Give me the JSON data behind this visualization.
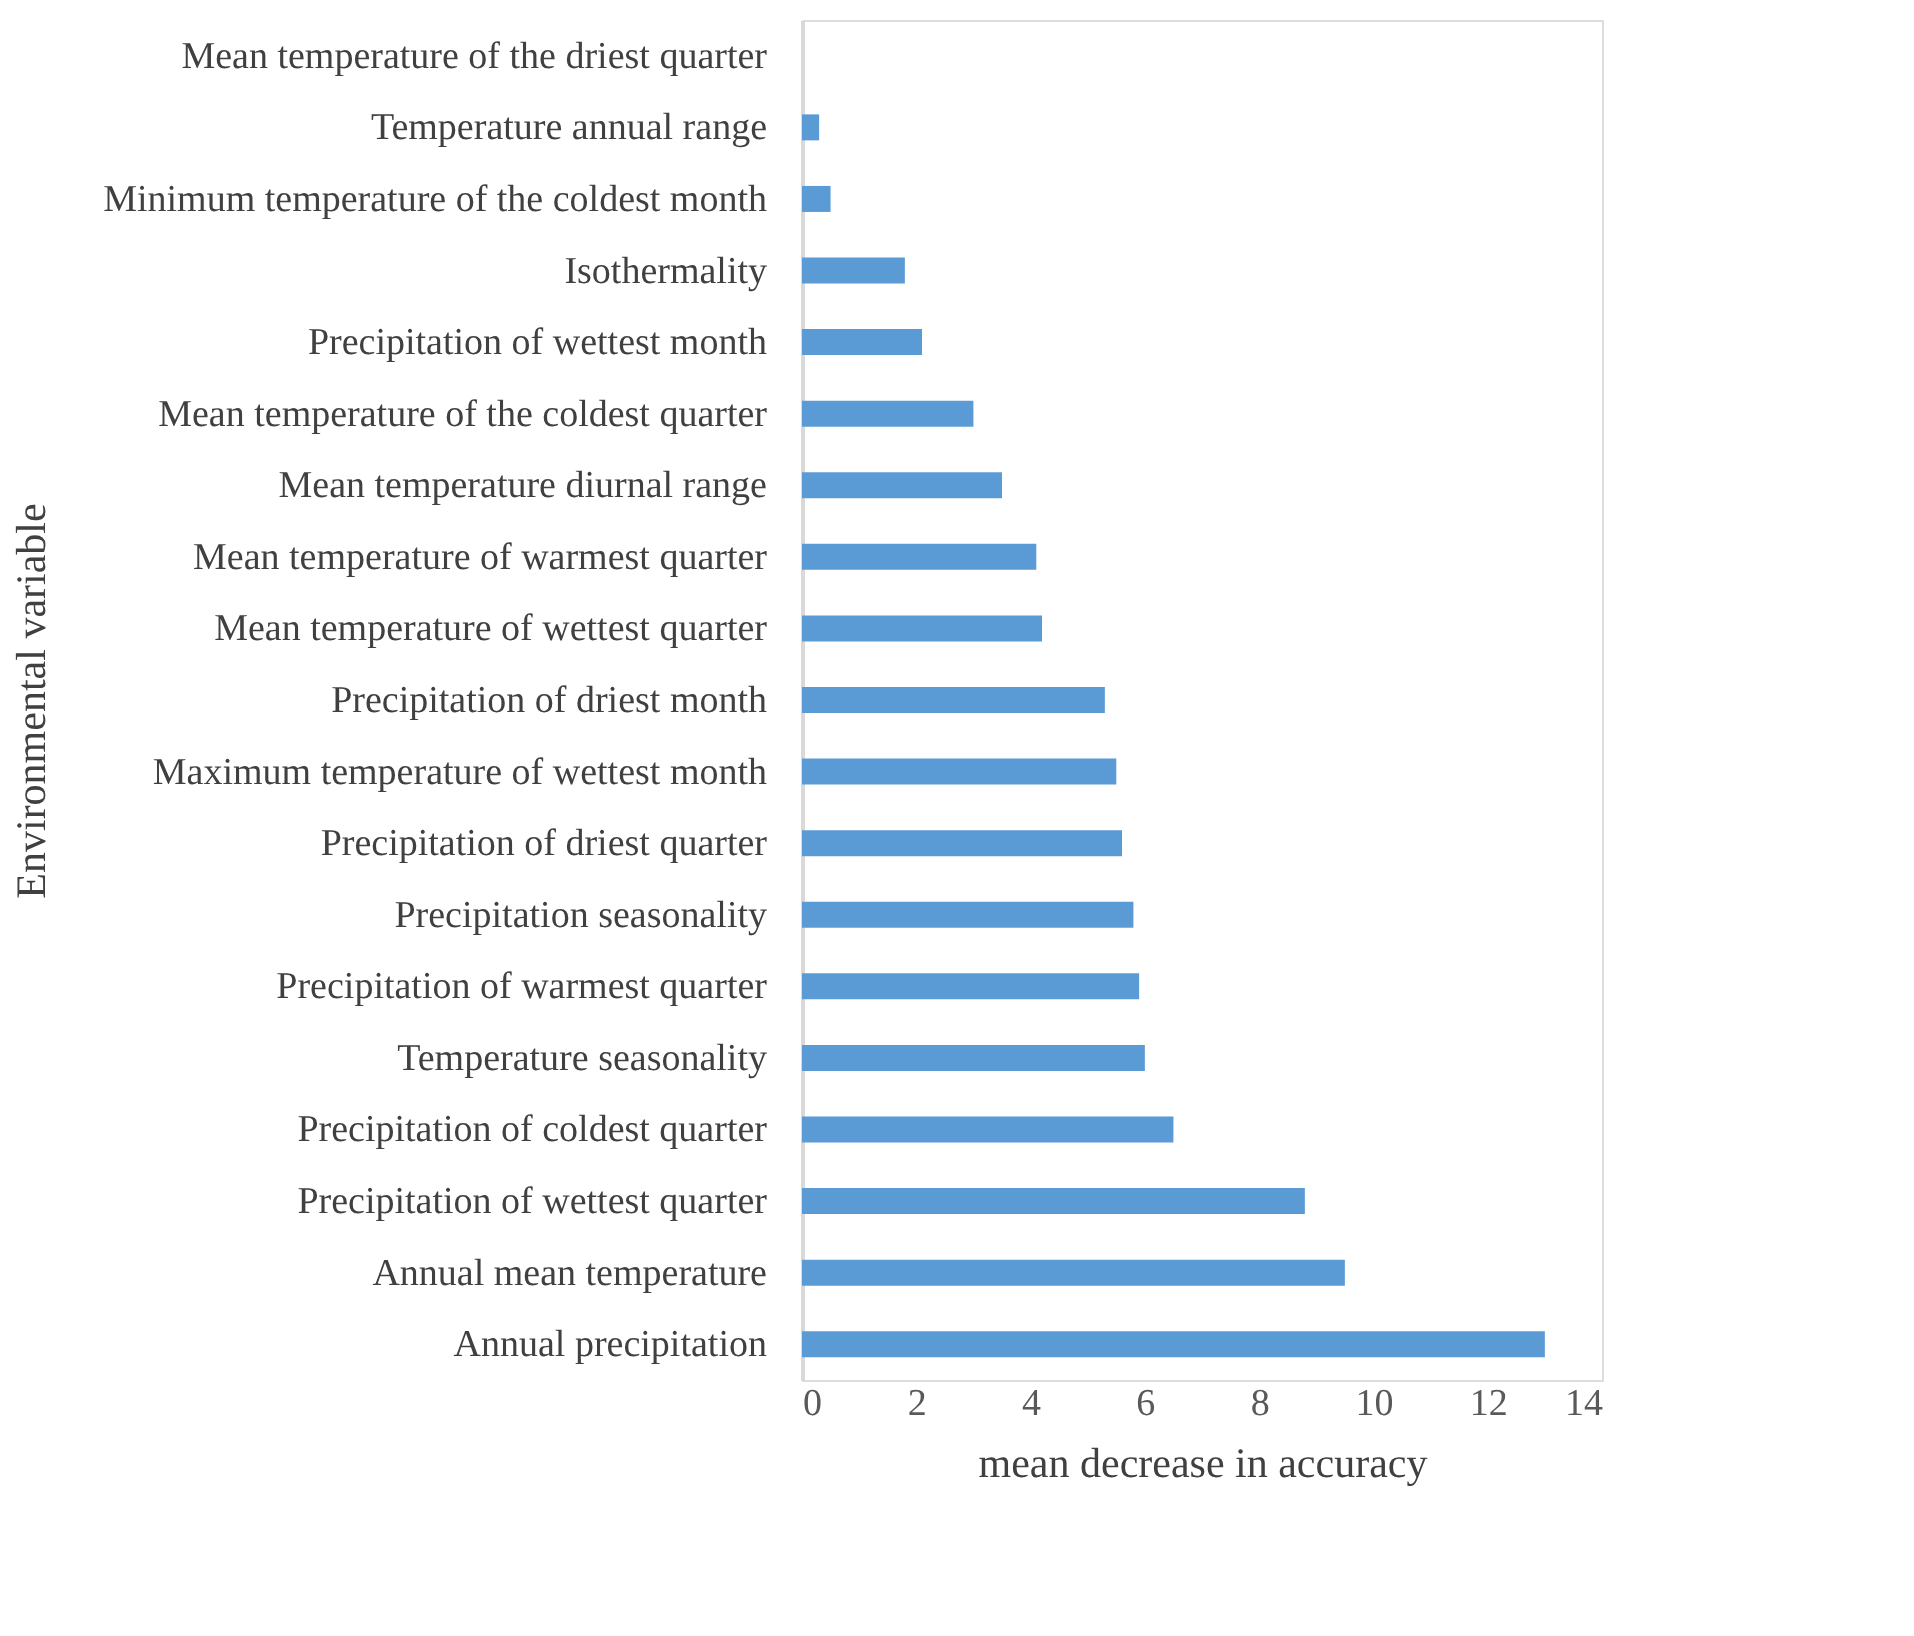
{
  "chart_data": {
    "type": "bar",
    "orientation": "horizontal",
    "xlabel": "mean decrease in accuracy",
    "ylabel": "Environmental variable",
    "color": "#5b9bd5",
    "categories": [
      "Mean temperature of the driest quarter",
      "Temperature annual range",
      "Minimum temperature of the coldest month",
      "Isothermality",
      "Precipitation of wettest month",
      "Mean temperature of the coldest quarter",
      "Mean temperature diurnal range",
      "Mean temperature of warmest quarter",
      "Mean temperature of wettest quarter",
      "Precipitation of driest month",
      "Maximum temperature of wettest month",
      "Precipitation of driest quarter",
      "Precipitation seasonality",
      "Precipitation of warmest quarter",
      "Temperature seasonality",
      "Precipitation of coldest quarter",
      "Precipitation  of wettest quarter",
      "Annual mean temperature",
      "Annual precipitation"
    ],
    "values": [
      0,
      0.3,
      0.5,
      1.8,
      2.1,
      3.0,
      3.5,
      4.1,
      4.2,
      5.3,
      5.5,
      5.6,
      5.8,
      5.9,
      6.0,
      6.5,
      8.8,
      9.5,
      13.0
    ],
    "xlim": [
      0,
      14
    ],
    "xticks": [
      0,
      2,
      4,
      6,
      8,
      10,
      12,
      14
    ],
    "grid": false
  }
}
